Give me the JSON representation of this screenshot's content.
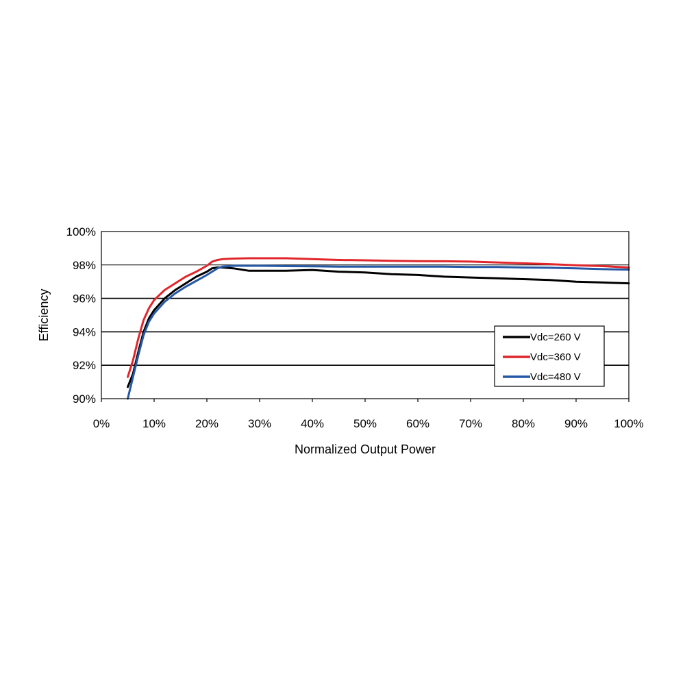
{
  "chart_data": {
    "type": "line",
    "title": "",
    "xlabel": "Normalized Output Power",
    "ylabel": "Efficiency",
    "xlim": [
      0,
      100
    ],
    "ylim": [
      90,
      100
    ],
    "x_ticks": [
      0,
      10,
      20,
      30,
      40,
      50,
      60,
      70,
      80,
      90,
      100
    ],
    "x_tick_labels": [
      "0%",
      "10%",
      "20%",
      "30%",
      "40%",
      "50%",
      "60%",
      "70%",
      "80%",
      "90%",
      "100%"
    ],
    "y_ticks": [
      90,
      92,
      94,
      96,
      98,
      100
    ],
    "y_tick_labels": [
      "90%",
      "92%",
      "94%",
      "96%",
      "98%",
      "100%"
    ],
    "grid": "horizontal",
    "legend_position": "right",
    "series": [
      {
        "name": "Vdc=260 V",
        "color": "#000000",
        "x": [
          5,
          6,
          7,
          8,
          9,
          10,
          12,
          14,
          16,
          18,
          20,
          21,
          22,
          23,
          25,
          28,
          30,
          35,
          40,
          45,
          50,
          55,
          60,
          65,
          70,
          75,
          80,
          85,
          90,
          95,
          100
        ],
        "y": [
          90.7,
          91.5,
          92.8,
          94.0,
          94.8,
          95.3,
          96.0,
          96.5,
          96.9,
          97.3,
          97.6,
          97.8,
          97.85,
          97.85,
          97.8,
          97.65,
          97.65,
          97.65,
          97.7,
          97.6,
          97.55,
          97.45,
          97.4,
          97.3,
          97.25,
          97.2,
          97.15,
          97.1,
          97.0,
          96.95,
          96.9
        ]
      },
      {
        "name": "Vdc=360 V",
        "color": "#e0262b",
        "x": [
          5,
          6,
          7,
          8,
          9,
          10,
          12,
          14,
          16,
          18,
          20,
          21,
          22,
          23,
          25,
          28,
          30,
          35,
          40,
          45,
          50,
          55,
          60,
          65,
          70,
          75,
          80,
          85,
          90,
          95,
          100
        ],
        "y": [
          91.3,
          92.3,
          93.6,
          94.7,
          95.4,
          95.9,
          96.5,
          96.9,
          97.3,
          97.6,
          97.95,
          98.2,
          98.3,
          98.35,
          98.38,
          98.4,
          98.4,
          98.4,
          98.35,
          98.3,
          98.28,
          98.25,
          98.23,
          98.22,
          98.2,
          98.15,
          98.1,
          98.05,
          97.98,
          97.93,
          97.85
        ]
      },
      {
        "name": "Vdc=480 V",
        "color": "#2559a6",
        "x": [
          5,
          6,
          7,
          8,
          9,
          10,
          12,
          14,
          16,
          18,
          20,
          21,
          22,
          23,
          25,
          28,
          30,
          35,
          40,
          45,
          50,
          55,
          60,
          65,
          70,
          75,
          80,
          85,
          90,
          95,
          100
        ],
        "y": [
          90.0,
          91.3,
          92.6,
          93.8,
          94.6,
          95.1,
          95.8,
          96.3,
          96.7,
          97.05,
          97.4,
          97.6,
          97.8,
          97.9,
          97.95,
          97.95,
          97.95,
          97.93,
          97.92,
          97.9,
          97.9,
          97.9,
          97.9,
          97.9,
          97.88,
          97.88,
          97.85,
          97.83,
          97.8,
          97.75,
          97.72
        ]
      }
    ]
  }
}
